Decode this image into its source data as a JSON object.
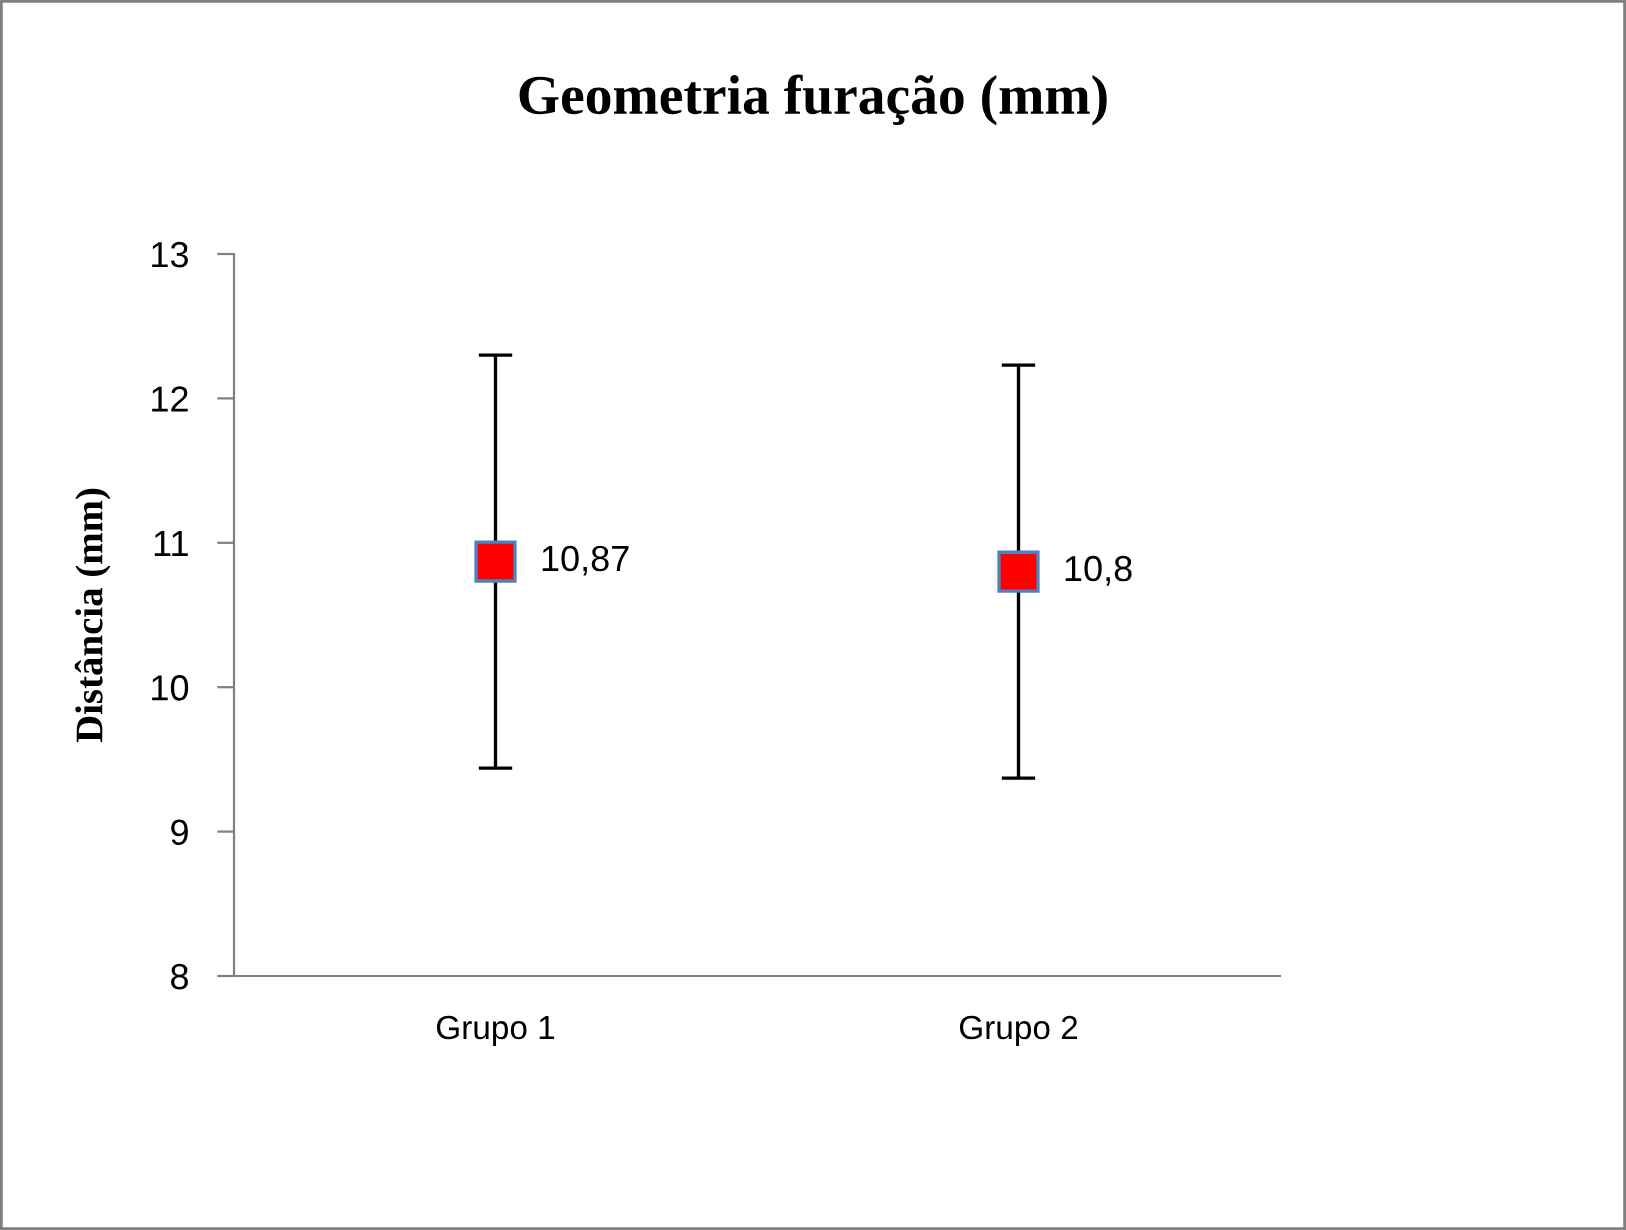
{
  "chart_data": {
    "type": "scatter",
    "title": "Geometria furação (mm)",
    "ylabel": "Distância (mm)",
    "categories": [
      "Grupo 1",
      "Grupo 2"
    ],
    "series": [
      {
        "color": "#ff0000",
        "values": [
          10.87,
          10.8
        ],
        "errors": [
          1.43,
          1.43
        ],
        "value_labels": [
          "10,87",
          "10,8"
        ]
      }
    ],
    "ylim": [
      8,
      13
    ],
    "yticks": [
      8,
      9,
      10,
      11,
      12,
      13
    ],
    "marker": "square",
    "grid": false,
    "legend": false
  }
}
